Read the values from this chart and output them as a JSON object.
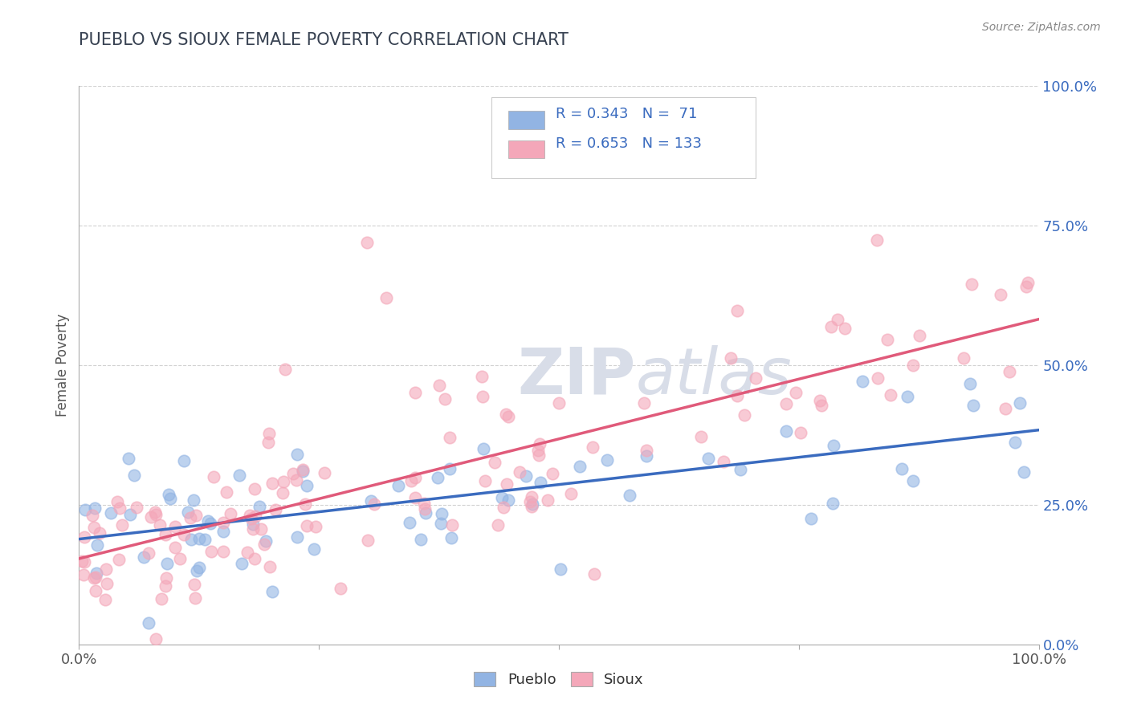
{
  "title": "PUEBLO VS SIOUX FEMALE POVERTY CORRELATION CHART",
  "source": "Source: ZipAtlas.com",
  "ylabel": "Female Poverty",
  "right_yticks": [
    0.0,
    0.25,
    0.5,
    0.75,
    1.0
  ],
  "right_yticklabels": [
    "0.0%",
    "25.0%",
    "50.0%",
    "75.0%",
    "100.0%"
  ],
  "pueblo_R": 0.343,
  "pueblo_N": 71,
  "sioux_R": 0.653,
  "sioux_N": 133,
  "pueblo_color": "#92b4e3",
  "sioux_color": "#f4a7b9",
  "pueblo_line_color": "#3a6bbf",
  "sioux_line_color": "#e05a7a",
  "background_color": "#ffffff",
  "title_color": "#374151",
  "legend_text_color": "#3a6bbf",
  "watermark_color": "#d8dde8",
  "grid_color": "#cccccc",
  "axis_color": "#aaaaaa",
  "tick_color": "#555555",
  "source_color": "#888888"
}
